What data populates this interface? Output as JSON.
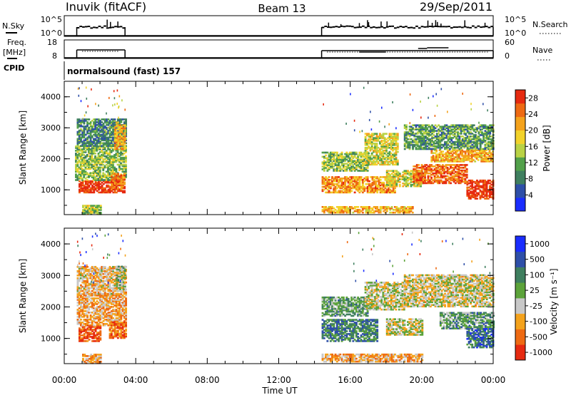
{
  "header": {
    "station": "Inuvik  (fitACF)",
    "beam": "Beam 13",
    "date": "29/Sep/2011"
  },
  "top_panels": {
    "nsky_label": "N.Sky",
    "nsky_ticks": [
      "10^5",
      "10^0"
    ],
    "nsearch_label": "N.Search",
    "nsearch_ticks": [
      "10^5",
      "10^0"
    ],
    "freq_label_1": "Freq.",
    "freq_label_2": "[MHz]",
    "freq_ticks": [
      "18",
      "8"
    ],
    "nave_label": "Nave",
    "nave_ticks": [
      "60",
      "0"
    ],
    "cpid_label": "CPID",
    "cpid_text": "normalsound (fast) 157"
  },
  "x_axis": {
    "ticks": [
      "00:00",
      "04:00",
      "08:00",
      "12:00",
      "16:00",
      "20:00",
      "00:00"
    ],
    "label": "Time UT"
  },
  "colors": {
    "power": [
      "#1a2dff",
      "#2e4fa8",
      "#3f7f5f",
      "#52a04a",
      "#b9d245",
      "#f2d22a",
      "#f4a21c",
      "#ee6a13",
      "#e62a10"
    ],
    "velocity": [
      "#e62a10",
      "#ee6a13",
      "#f4a21c",
      "#c8c8c8",
      "#5ca33a",
      "#3f7f5f",
      "#2e4fa8",
      "#1a2dff"
    ]
  },
  "chart_data": [
    {
      "type": "heatmap",
      "name": "power",
      "ylabel": "Slant Range [km]",
      "yticks": [
        "1000",
        "2000",
        "3000",
        "4000"
      ],
      "ylim": [
        200,
        4500
      ],
      "xlim": [
        0,
        24
      ],
      "colorbar_label": "Power [dB]",
      "colorbar_ticks": [
        "4",
        "8",
        "12",
        "16",
        "20",
        "24",
        "28"
      ],
      "colorbar_range": [
        0,
        30
      ],
      "data_windows": [
        [
          0.7,
          3.4
        ],
        [
          14.4,
          24
        ]
      ],
      "bands": [
        {
          "t0": 0.8,
          "t1": 3.4,
          "r0": 900,
          "r1": 1300,
          "level": 0.95
        },
        {
          "t0": 0.6,
          "t1": 3.4,
          "r0": 1300,
          "r1": 2400,
          "level": 0.45
        },
        {
          "t0": 0.7,
          "t1": 3.4,
          "r0": 2400,
          "r1": 3300,
          "level": 0.3
        },
        {
          "t0": 2.6,
          "t1": 3.4,
          "r0": 1000,
          "r1": 1500,
          "level": 0.85
        },
        {
          "t0": 2.8,
          "t1": 3.4,
          "r0": 2300,
          "r1": 3100,
          "level": 0.7
        },
        {
          "t0": 14.4,
          "t1": 18.5,
          "r0": 900,
          "r1": 1400,
          "level": 0.75
        },
        {
          "t0": 14.4,
          "t1": 17.0,
          "r0": 1600,
          "r1": 2200,
          "level": 0.45
        },
        {
          "t0": 16.8,
          "t1": 18.6,
          "r0": 1800,
          "r1": 2800,
          "level": 0.55
        },
        {
          "t0": 18.0,
          "t1": 20.0,
          "r0": 1100,
          "r1": 1600,
          "level": 0.55
        },
        {
          "t0": 19.5,
          "t1": 22.5,
          "r0": 1200,
          "r1": 1800,
          "level": 0.85
        },
        {
          "t0": 20.5,
          "t1": 24.0,
          "r0": 1900,
          "r1": 2300,
          "level": 0.7
        },
        {
          "t0": 19.0,
          "t1": 24.0,
          "r0": 2300,
          "r1": 3100,
          "level": 0.35
        },
        {
          "t0": 22.5,
          "t1": 24.0,
          "r0": 700,
          "r1": 1300,
          "level": 0.95
        },
        {
          "t0": 14.4,
          "t1": 19.5,
          "r0": 250,
          "r1": 450,
          "level": 0.7
        },
        {
          "t0": 1.0,
          "t1": 2.0,
          "r0": 200,
          "r1": 500,
          "level": 0.5
        }
      ]
    },
    {
      "type": "heatmap",
      "name": "velocity",
      "ylabel": "Slant Range [km]",
      "yticks": [
        "1000",
        "2000",
        "3000",
        "4000"
      ],
      "ylim": [
        200,
        4500
      ],
      "xlim": [
        0,
        24
      ],
      "colorbar_label": "Velocity [m s⁻¹]",
      "colorbar_ticks": [
        "1000",
        "500",
        "100",
        "25",
        "-25",
        "-100",
        "-500",
        "-1000"
      ],
      "data_windows": [
        [
          0.7,
          3.4
        ],
        [
          14.4,
          24
        ]
      ],
      "bands": [
        {
          "t0": 0.8,
          "t1": 2.0,
          "r0": 900,
          "r1": 1400,
          "level": 0.12
        },
        {
          "t0": 0.7,
          "t1": 3.4,
          "r0": 1400,
          "r1": 2400,
          "level": 0.3
        },
        {
          "t0": 0.7,
          "t1": 3.4,
          "r0": 2400,
          "r1": 3300,
          "level": 0.35
        },
        {
          "t0": 2.5,
          "t1": 3.4,
          "r0": 1000,
          "r1": 1500,
          "level": 0.2
        },
        {
          "t0": 2.9,
          "t1": 3.4,
          "r0": 2500,
          "r1": 3300,
          "level": 0.5
        },
        {
          "t0": 14.4,
          "t1": 17.5,
          "r0": 900,
          "r1": 1600,
          "level": 0.7
        },
        {
          "t0": 14.4,
          "t1": 17.0,
          "r0": 1700,
          "r1": 2300,
          "level": 0.6
        },
        {
          "t0": 16.8,
          "t1": 19.0,
          "r0": 1900,
          "r1": 2800,
          "level": 0.45
        },
        {
          "t0": 18.0,
          "t1": 20.0,
          "r0": 1100,
          "r1": 1600,
          "level": 0.45
        },
        {
          "t0": 19.0,
          "t1": 24.0,
          "r0": 2000,
          "r1": 3000,
          "level": 0.42
        },
        {
          "t0": 21.0,
          "t1": 24.0,
          "r0": 1300,
          "r1": 1800,
          "level": 0.6
        },
        {
          "t0": 22.5,
          "t1": 24.0,
          "r0": 700,
          "r1": 1300,
          "level": 0.75
        },
        {
          "t0": 14.4,
          "t1": 20.0,
          "r0": 250,
          "r1": 500,
          "level": 0.3
        },
        {
          "t0": 1.0,
          "t1": 2.0,
          "r0": 200,
          "r1": 500,
          "level": 0.3
        }
      ]
    }
  ]
}
